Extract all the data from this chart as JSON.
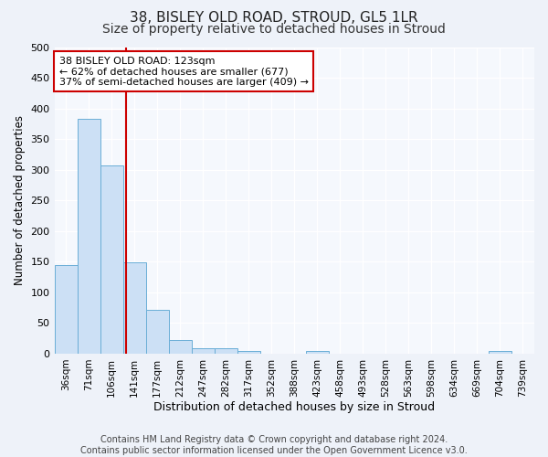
{
  "title": "38, BISLEY OLD ROAD, STROUD, GL5 1LR",
  "subtitle": "Size of property relative to detached houses in Stroud",
  "xlabel": "Distribution of detached houses by size in Stroud",
  "ylabel": "Number of detached properties",
  "bar_labels": [
    "36sqm",
    "71sqm",
    "106sqm",
    "141sqm",
    "177sqm",
    "212sqm",
    "247sqm",
    "282sqm",
    "317sqm",
    "352sqm",
    "388sqm",
    "423sqm",
    "458sqm",
    "493sqm",
    "528sqm",
    "563sqm",
    "598sqm",
    "634sqm",
    "669sqm",
    "704sqm",
    "739sqm"
  ],
  "bar_values": [
    144,
    383,
    307,
    149,
    71,
    22,
    9,
    9,
    5,
    0,
    0,
    5,
    0,
    0,
    0,
    0,
    0,
    0,
    0,
    5,
    0
  ],
  "bar_color": "#cce0f5",
  "bar_edge_color": "#6aaed6",
  "bar_width": 1.0,
  "vline_x": 2.63,
  "vline_color": "#cc0000",
  "annotation_text": "38 BISLEY OLD ROAD: 123sqm\n← 62% of detached houses are smaller (677)\n37% of semi-detached houses are larger (409) →",
  "annotation_box_color": "white",
  "annotation_box_edge": "#cc0000",
  "ylim": [
    0,
    500
  ],
  "yticks": [
    0,
    50,
    100,
    150,
    200,
    250,
    300,
    350,
    400,
    450,
    500
  ],
  "footnote": "Contains HM Land Registry data © Crown copyright and database right 2024.\nContains public sector information licensed under the Open Government Licence v3.0.",
  "bg_color": "#eef2f9",
  "plot_bg_color": "#f5f8fd",
  "title_fontsize": 11,
  "subtitle_fontsize": 10,
  "xlabel_fontsize": 9,
  "ylabel_fontsize": 8.5,
  "footnote_fontsize": 7,
  "annotation_fontsize": 8,
  "tick_fontsize": 7.5,
  "ytick_fontsize": 8
}
